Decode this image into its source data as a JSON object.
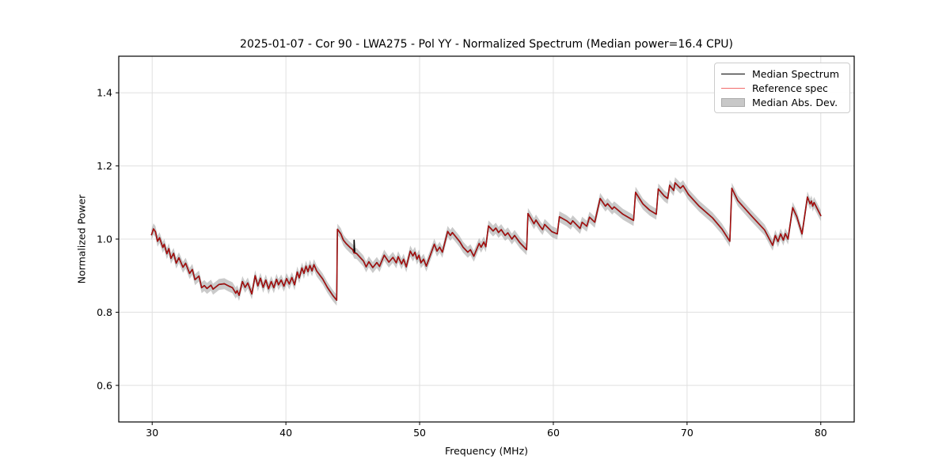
{
  "figure": {
    "title": "2025-01-07 - Cor 90 - LWA275 - Pol YY - Normalized Spectrum (Median power=16.4 CPU)",
    "background": "#ffffff"
  },
  "axes": {
    "xlabel": "Frequency (MHz)",
    "ylabel": "Normalized Power",
    "xtick_labels": [
      "30",
      "40",
      "50",
      "60",
      "70",
      "80"
    ],
    "ytick_labels": [
      "0.6",
      "0.8",
      "1.0",
      "1.2",
      "1.4"
    ],
    "frame_color": "#000000",
    "grid_color": "#e0e0e0"
  },
  "legend": {
    "items": [
      {
        "label": "Median Spectrum",
        "swatch": "line",
        "color": "#000000"
      },
      {
        "label": "Reference spec",
        "swatch": "line",
        "color": "#f26c6c"
      },
      {
        "label": "Median Abs. Dev.",
        "swatch": "patch",
        "color": "#c8c8c8",
        "edge": "#aaaaaa"
      }
    ]
  },
  "chart_data": {
    "type": "line",
    "title": "2025-01-07 - Cor 90 - LWA275 - Pol YY - Normalized Spectrum (Median power=16.4 CPU)",
    "xlabel": "Frequency (MHz)",
    "ylabel": "Normalized Power",
    "xlim": [
      27.5,
      82.5
    ],
    "ylim": [
      0.5,
      1.5
    ],
    "xticks": [
      30,
      40,
      50,
      60,
      70,
      80
    ],
    "yticks": [
      0.6,
      0.8,
      1.0,
      1.2,
      1.4
    ],
    "grid": true,
    "legend_position": "upper right",
    "points": [
      [
        29.95,
        1.012
      ],
      [
        30.1,
        1.028
      ],
      [
        30.25,
        1.02
      ],
      [
        30.4,
        0.994
      ],
      [
        30.55,
        1.004
      ],
      [
        30.8,
        0.977
      ],
      [
        30.9,
        0.986
      ],
      [
        31.1,
        0.96
      ],
      [
        31.25,
        0.974
      ],
      [
        31.4,
        0.947
      ],
      [
        31.6,
        0.961
      ],
      [
        31.8,
        0.934
      ],
      [
        32.0,
        0.949
      ],
      [
        32.3,
        0.923
      ],
      [
        32.5,
        0.934
      ],
      [
        32.8,
        0.906
      ],
      [
        33.0,
        0.917
      ],
      [
        33.2,
        0.889
      ],
      [
        33.5,
        0.899
      ],
      [
        33.7,
        0.867
      ],
      [
        33.9,
        0.873
      ],
      [
        34.1,
        0.865
      ],
      [
        34.4,
        0.874
      ],
      [
        34.55,
        0.863
      ],
      [
        35.0,
        0.876
      ],
      [
        35.4,
        0.878
      ],
      [
        35.7,
        0.872
      ],
      [
        36.0,
        0.867
      ],
      [
        36.25,
        0.852
      ],
      [
        36.35,
        0.859
      ],
      [
        36.5,
        0.846
      ],
      [
        36.75,
        0.884
      ],
      [
        36.95,
        0.868
      ],
      [
        37.15,
        0.88
      ],
      [
        37.45,
        0.85
      ],
      [
        37.7,
        0.9
      ],
      [
        37.9,
        0.872
      ],
      [
        38.1,
        0.893
      ],
      [
        38.3,
        0.868
      ],
      [
        38.5,
        0.888
      ],
      [
        38.7,
        0.864
      ],
      [
        38.9,
        0.884
      ],
      [
        39.1,
        0.867
      ],
      [
        39.3,
        0.89
      ],
      [
        39.45,
        0.875
      ],
      [
        39.65,
        0.888
      ],
      [
        39.85,
        0.871
      ],
      [
        40.05,
        0.892
      ],
      [
        40.25,
        0.877
      ],
      [
        40.45,
        0.895
      ],
      [
        40.65,
        0.875
      ],
      [
        40.85,
        0.91
      ],
      [
        41.0,
        0.894
      ],
      [
        41.2,
        0.921
      ],
      [
        41.35,
        0.906
      ],
      [
        41.5,
        0.926
      ],
      [
        41.65,
        0.911
      ],
      [
        41.8,
        0.928
      ],
      [
        41.95,
        0.913
      ],
      [
        42.1,
        0.93
      ],
      [
        42.3,
        0.913
      ],
      [
        42.75,
        0.891
      ],
      [
        43.1,
        0.868
      ],
      [
        43.5,
        0.846
      ],
      [
        43.8,
        0.833
      ],
      [
        43.85,
        1.027
      ],
      [
        44.1,
        1.015
      ],
      [
        44.3,
        0.997
      ],
      [
        44.5,
        0.988
      ],
      [
        44.8,
        0.977
      ],
      [
        45.0,
        0.971
      ],
      [
        45.1,
        0.962
      ],
      [
        45.3,
        0.96
      ],
      [
        45.5,
        0.952
      ],
      [
        45.8,
        0.94
      ],
      [
        46.0,
        0.924
      ],
      [
        46.2,
        0.938
      ],
      [
        46.5,
        0.922
      ],
      [
        46.8,
        0.936
      ],
      [
        47.0,
        0.925
      ],
      [
        47.35,
        0.956
      ],
      [
        47.7,
        0.937
      ],
      [
        48.0,
        0.95
      ],
      [
        48.25,
        0.935
      ],
      [
        48.4,
        0.952
      ],
      [
        48.65,
        0.932
      ],
      [
        48.8,
        0.945
      ],
      [
        49.0,
        0.924
      ],
      [
        49.3,
        0.967
      ],
      [
        49.5,
        0.954
      ],
      [
        49.65,
        0.964
      ],
      [
        49.8,
        0.945
      ],
      [
        49.95,
        0.956
      ],
      [
        50.1,
        0.935
      ],
      [
        50.3,
        0.945
      ],
      [
        50.5,
        0.926
      ],
      [
        51.1,
        0.986
      ],
      [
        51.3,
        0.967
      ],
      [
        51.5,
        0.978
      ],
      [
        51.7,
        0.964
      ],
      [
        52.1,
        1.021
      ],
      [
        52.3,
        1.01
      ],
      [
        52.45,
        1.018
      ],
      [
        53.0,
        0.993
      ],
      [
        53.25,
        0.978
      ],
      [
        53.6,
        0.964
      ],
      [
        53.8,
        0.971
      ],
      [
        54.05,
        0.953
      ],
      [
        54.45,
        0.988
      ],
      [
        54.6,
        0.978
      ],
      [
        54.8,
        0.992
      ],
      [
        54.95,
        0.979
      ],
      [
        55.15,
        1.036
      ],
      [
        55.5,
        1.022
      ],
      [
        55.7,
        1.03
      ],
      [
        55.9,
        1.018
      ],
      [
        56.1,
        1.026
      ],
      [
        56.4,
        1.01
      ],
      [
        56.6,
        1.017
      ],
      [
        56.9,
        1.0
      ],
      [
        57.1,
        1.01
      ],
      [
        57.5,
        0.99
      ],
      [
        58.0,
        0.971
      ],
      [
        58.1,
        1.07
      ],
      [
        58.4,
        1.052
      ],
      [
        58.55,
        1.042
      ],
      [
        58.7,
        1.052
      ],
      [
        59.0,
        1.035
      ],
      [
        59.2,
        1.026
      ],
      [
        59.35,
        1.04
      ],
      [
        59.9,
        1.02
      ],
      [
        60.3,
        1.014
      ],
      [
        60.45,
        1.061
      ],
      [
        61.0,
        1.05
      ],
      [
        61.3,
        1.041
      ],
      [
        61.45,
        1.05
      ],
      [
        62.0,
        1.029
      ],
      [
        62.15,
        1.046
      ],
      [
        62.5,
        1.035
      ],
      [
        62.7,
        1.06
      ],
      [
        63.1,
        1.046
      ],
      [
        63.5,
        1.111
      ],
      [
        63.9,
        1.09
      ],
      [
        64.05,
        1.097
      ],
      [
        64.4,
        1.082
      ],
      [
        64.55,
        1.088
      ],
      [
        65.2,
        1.068
      ],
      [
        66.0,
        1.051
      ],
      [
        66.15,
        1.128
      ],
      [
        66.7,
        1.096
      ],
      [
        67.2,
        1.079
      ],
      [
        67.7,
        1.068
      ],
      [
        67.85,
        1.137
      ],
      [
        68.3,
        1.118
      ],
      [
        68.55,
        1.111
      ],
      [
        68.7,
        1.147
      ],
      [
        69.0,
        1.133
      ],
      [
        69.1,
        1.154
      ],
      [
        69.5,
        1.139
      ],
      [
        69.7,
        1.146
      ],
      [
        70.1,
        1.122
      ],
      [
        70.9,
        1.09
      ],
      [
        71.9,
        1.058
      ],
      [
        72.6,
        1.028
      ],
      [
        73.2,
        0.994
      ],
      [
        73.35,
        1.139
      ],
      [
        73.8,
        1.105
      ],
      [
        74.8,
        1.064
      ],
      [
        75.8,
        1.025
      ],
      [
        76.4,
        0.983
      ],
      [
        76.6,
        1.01
      ],
      [
        76.8,
        0.993
      ],
      [
        77.0,
        1.014
      ],
      [
        77.2,
        0.997
      ],
      [
        77.35,
        1.015
      ],
      [
        77.55,
        1.0
      ],
      [
        77.9,
        1.086
      ],
      [
        78.2,
        1.062
      ],
      [
        78.6,
        1.014
      ],
      [
        79.0,
        1.115
      ],
      [
        79.2,
        1.096
      ],
      [
        79.3,
        1.104
      ],
      [
        79.4,
        1.09
      ],
      [
        79.5,
        1.1
      ],
      [
        80.0,
        1.064
      ]
    ],
    "series": [
      {
        "name": "Median Spectrum",
        "style": "line",
        "color": "#000000",
        "width": 1.6,
        "source": "points",
        "extra_points": [
          [
            45.05,
            0.966
          ],
          [
            45.1,
            0.997
          ],
          [
            45.15,
            0.963
          ]
        ]
      },
      {
        "name": "Reference spec",
        "style": "line",
        "color": "#ff1010",
        "opacity": 0.72,
        "width": 1.3,
        "source": "points"
      },
      {
        "name": "Median Abs. Dev.",
        "style": "band",
        "color": "#808080",
        "opacity": 0.42,
        "source": "points",
        "halfwidth": 0.015
      }
    ]
  }
}
